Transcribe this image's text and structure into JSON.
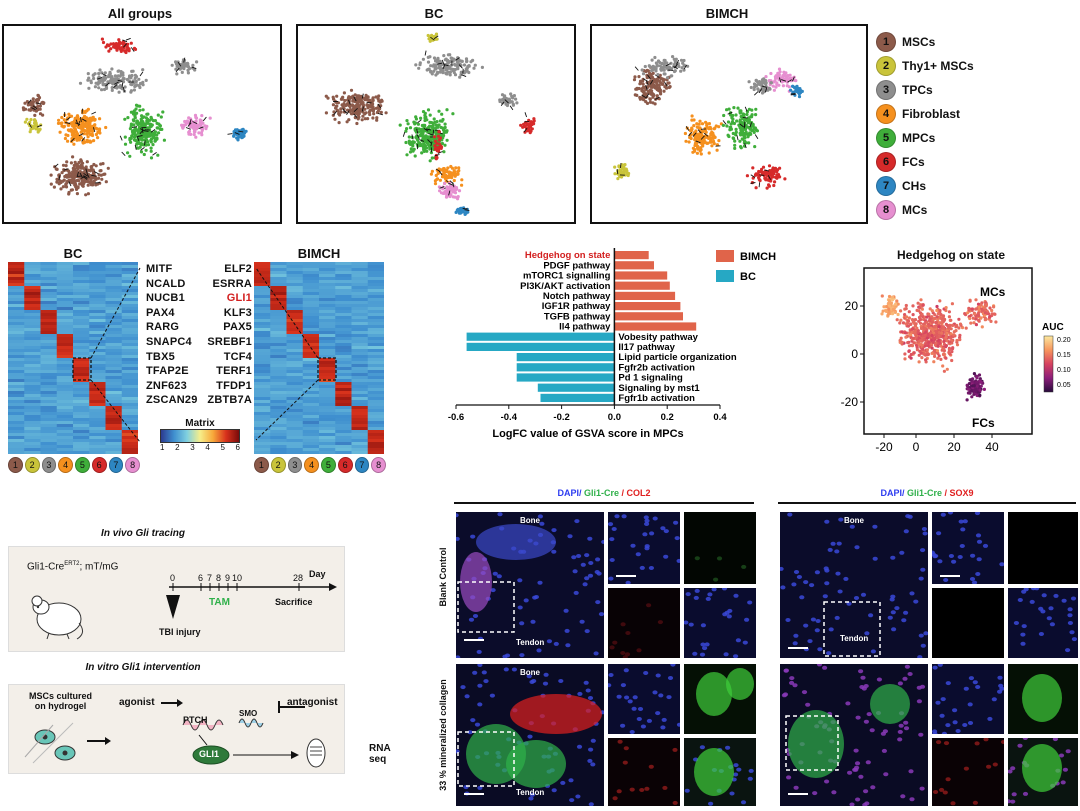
{
  "umap": {
    "titles": [
      "All groups",
      "BC",
      "BIMCH"
    ],
    "legend": [
      {
        "num": "1",
        "label": "MSCs",
        "color": "#8c5a4a"
      },
      {
        "num": "2",
        "label": "Thy1+ MSCs",
        "color": "#c9c43a"
      },
      {
        "num": "3",
        "label": "TPCs",
        "color": "#8e8e8e"
      },
      {
        "num": "4",
        "label": "Fibroblast",
        "color": "#f5901e"
      },
      {
        "num": "5",
        "label": "MPCs",
        "color": "#3fae3a"
      },
      {
        "num": "6",
        "label": "FCs",
        "color": "#d62a2a"
      },
      {
        "num": "7",
        "label": "CHs",
        "color": "#2d86c2"
      },
      {
        "num": "8",
        "label": "MCs",
        "color": "#e68fd0"
      }
    ]
  },
  "heatmaps": {
    "bc_title": "BC",
    "bimch_title": "BIMCH",
    "bc_genes": [
      "MITF",
      "NCALD",
      "NUCB1",
      "PAX4",
      "RARG",
      "SNAPC4",
      "TBX5",
      "TFAP2E",
      "ZNF623",
      "ZSCAN29"
    ],
    "bimch_genes": [
      "ELF2",
      "ESRRA",
      "GLI1",
      "KLF3",
      "PAX5",
      "SREBF1",
      "TCF4",
      "TERF1",
      "TFDP1",
      "ZBTB7A"
    ],
    "highlight_gene": "GLI1",
    "matrix_label": "Matrix",
    "matrix_ticks": [
      "1",
      "2",
      "3",
      "4",
      "5",
      "6"
    ],
    "cluster_nums": [
      "1",
      "2",
      "3",
      "4",
      "5",
      "6",
      "7",
      "8"
    ]
  },
  "chart_data": {
    "type": "bar",
    "orientation": "horizontal",
    "xlabel": "LogFC value of GSVA score in MPCs",
    "xlim": [
      -0.6,
      0.4
    ],
    "xticks": [
      "-0.6",
      "-0.4",
      "-0.2",
      "0.0",
      "0.2",
      "0.4"
    ],
    "legend": [
      {
        "name": "BIMCH",
        "color": "#e0644a"
      },
      {
        "name": "BC",
        "color": "#26a8c4"
      }
    ],
    "highlight_term": "Hedgehog on state",
    "bars": [
      {
        "term": "Hedgehog on state",
        "value": 0.13,
        "group": "BIMCH"
      },
      {
        "term": "PDGF pathway",
        "value": 0.15,
        "group": "BIMCH"
      },
      {
        "term": "mTORC1 signalling",
        "value": 0.2,
        "group": "BIMCH"
      },
      {
        "term": "PI3K/AKT activation",
        "value": 0.21,
        "group": "BIMCH"
      },
      {
        "term": "Notch pathway",
        "value": 0.23,
        "group": "BIMCH"
      },
      {
        "term": "IGF1R pathway",
        "value": 0.25,
        "group": "BIMCH"
      },
      {
        "term": "TGFB pathway",
        "value": 0.26,
        "group": "BIMCH"
      },
      {
        "term": "Il4 pathway",
        "value": 0.31,
        "group": "BIMCH"
      },
      {
        "term": "Vobesity pathway",
        "value": -0.56,
        "group": "BC"
      },
      {
        "term": "Il17 pathway",
        "value": -0.56,
        "group": "BC"
      },
      {
        "term": "Lipid particle organization",
        "value": -0.37,
        "group": "BC"
      },
      {
        "term": "Fgfr2b activation",
        "value": -0.37,
        "group": "BC"
      },
      {
        "term": "Pd 1 signaling",
        "value": -0.37,
        "group": "BC"
      },
      {
        "term": "Signaling by mst1",
        "value": -0.29,
        "group": "BC"
      },
      {
        "term": "Fgfr1b activation",
        "value": -0.28,
        "group": "BC"
      }
    ]
  },
  "hedgehog": {
    "title": "Hedgehog on state",
    "label_mcs": "MCs",
    "label_fcs": "FCs",
    "auc_label": "AUC",
    "auc_ticks": [
      "0.20",
      "0.15",
      "0.10",
      "0.05"
    ],
    "xticks": [
      "-20",
      "0",
      "20",
      "40"
    ],
    "yticks": [
      "20",
      "0",
      "-20"
    ]
  },
  "schematic": {
    "in_vivo_title": "In vivo Gli tracing",
    "mouse_label": "Gli1-Cre",
    "mouse_sup": "ERT2",
    "mouse_suffix": "; mT/mG",
    "timeline_ticks": [
      "0",
      "6",
      "7",
      "8",
      "9",
      "10",
      "28"
    ],
    "day_label": "Day",
    "tam_label": "TAM",
    "sacrifice_label": "Sacrifice",
    "injury_label": "TBI injury",
    "in_vitro_title": "In vitro Gli1 intervention",
    "msc_label_1": "MSCs  cultured",
    "msc_label_2": "on hydrogel",
    "agonist_label": "agonist",
    "ptch_label": "PTCH",
    "smo_label": "SMO",
    "antagonist_label": "antagonist",
    "gli1_label": "GLI1",
    "rnaseq_label": "RNA seq"
  },
  "microscopy": {
    "left_title_dapi": "DAPI/",
    "left_title_gli": " Gli1-Cre",
    "left_title_marker": " / COL2",
    "right_title_dapi": "DAPI/",
    "right_title_gli": " Gli1-Cre",
    "right_title_marker": " / SOX9",
    "bone": "Bone",
    "tendon": "Tendon",
    "row1_label": "Blank Control",
    "row2_label": "33 % mineralized collagen"
  }
}
